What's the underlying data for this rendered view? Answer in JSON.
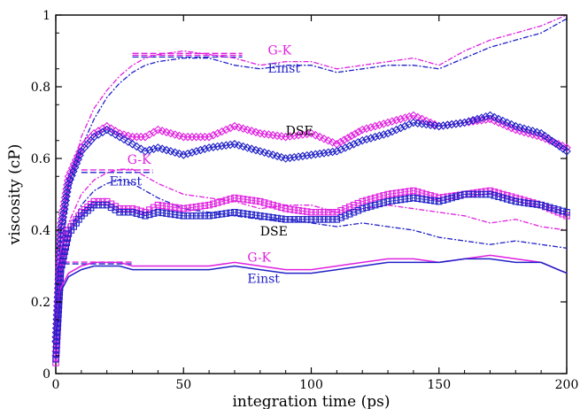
{
  "chart_data": {
    "type": "line",
    "title": "",
    "xlabel": "integration time (ps)",
    "ylabel": "viscosity (cP)",
    "xlim": [
      0,
      200
    ],
    "ylim": [
      0,
      1
    ],
    "xticks": [
      0,
      50,
      100,
      150,
      200
    ],
    "xtick_labels": [
      "0",
      "50",
      "100",
      "150",
      "200"
    ],
    "yticks": [
      0,
      0.2,
      0.4,
      0.6,
      0.8,
      1
    ],
    "ytick_labels": [
      "0",
      "0.2",
      "0.4",
      "0.6",
      "0.8",
      "1"
    ],
    "grid": false,
    "legend": "none",
    "colors": {
      "gk": "#e020e0",
      "einst": "#2020c8",
      "text": "#000000"
    },
    "series": [
      {
        "group": "top",
        "method": "G-K",
        "style": "dashed",
        "color": "#e020e0",
        "x": [
          0,
          2,
          5,
          10,
          15,
          20,
          25,
          30,
          35,
          40,
          50,
          60,
          70,
          80,
          90,
          100,
          110,
          120,
          130,
          140,
          150,
          160,
          170,
          180,
          190,
          200
        ],
        "y": [
          0.1,
          0.32,
          0.52,
          0.66,
          0.74,
          0.79,
          0.83,
          0.86,
          0.88,
          0.89,
          0.9,
          0.89,
          0.88,
          0.86,
          0.87,
          0.87,
          0.85,
          0.86,
          0.87,
          0.88,
          0.86,
          0.9,
          0.93,
          0.95,
          0.97,
          1.0
        ]
      },
      {
        "group": "top",
        "method": "Einst",
        "style": "dashed",
        "color": "#2020c8",
        "x": [
          0,
          2,
          5,
          10,
          15,
          20,
          25,
          30,
          35,
          40,
          50,
          60,
          70,
          80,
          90,
          100,
          110,
          120,
          130,
          140,
          150,
          160,
          170,
          180,
          190,
          200
        ],
        "y": [
          0.09,
          0.3,
          0.5,
          0.63,
          0.71,
          0.77,
          0.81,
          0.84,
          0.86,
          0.87,
          0.88,
          0.88,
          0.86,
          0.85,
          0.86,
          0.86,
          0.84,
          0.85,
          0.86,
          0.86,
          0.85,
          0.88,
          0.91,
          0.93,
          0.95,
          0.99
        ]
      },
      {
        "group": "top",
        "method": "DSE",
        "style": "diamond",
        "color": "#e020e0",
        "x": [
          0,
          2,
          5,
          10,
          15,
          20,
          25,
          30,
          35,
          40,
          50,
          60,
          70,
          80,
          90,
          100,
          110,
          120,
          130,
          140,
          150,
          160,
          170,
          180,
          190,
          200
        ],
        "y": [
          0.05,
          0.42,
          0.55,
          0.63,
          0.67,
          0.69,
          0.67,
          0.66,
          0.66,
          0.68,
          0.66,
          0.66,
          0.69,
          0.67,
          0.66,
          0.67,
          0.64,
          0.68,
          0.7,
          0.72,
          0.69,
          0.7,
          0.71,
          0.68,
          0.66,
          0.63
        ]
      },
      {
        "group": "top",
        "method": "DSE",
        "style": "diamond",
        "color": "#2020c8",
        "x": [
          0,
          2,
          5,
          10,
          15,
          20,
          25,
          30,
          35,
          40,
          50,
          60,
          70,
          80,
          90,
          100,
          110,
          120,
          130,
          140,
          150,
          160,
          170,
          180,
          190,
          200
        ],
        "y": [
          0.09,
          0.4,
          0.53,
          0.62,
          0.66,
          0.68,
          0.66,
          0.64,
          0.62,
          0.63,
          0.61,
          0.63,
          0.64,
          0.62,
          0.6,
          0.61,
          0.62,
          0.65,
          0.67,
          0.7,
          0.69,
          0.7,
          0.72,
          0.69,
          0.67,
          0.62
        ]
      },
      {
        "group": "middle",
        "method": "G-K",
        "style": "dashed",
        "color": "#e020e0",
        "x": [
          0,
          2,
          5,
          10,
          15,
          20,
          25,
          30,
          35,
          40,
          50,
          60,
          70,
          80,
          90,
          100,
          110,
          120,
          130,
          140,
          150,
          160,
          170,
          180,
          190,
          200
        ],
        "y": [
          0.08,
          0.28,
          0.42,
          0.5,
          0.54,
          0.56,
          0.57,
          0.57,
          0.55,
          0.53,
          0.5,
          0.49,
          0.48,
          0.46,
          0.47,
          0.47,
          0.45,
          0.46,
          0.47,
          0.46,
          0.45,
          0.44,
          0.42,
          0.43,
          0.41,
          0.4
        ]
      },
      {
        "group": "middle",
        "method": "Einst",
        "style": "dashed",
        "color": "#2020c8",
        "x": [
          0,
          2,
          5,
          10,
          15,
          20,
          25,
          30,
          35,
          40,
          50,
          60,
          70,
          80,
          90,
          100,
          110,
          120,
          130,
          140,
          150,
          160,
          170,
          180,
          190,
          200
        ],
        "y": [
          0.07,
          0.26,
          0.39,
          0.47,
          0.51,
          0.53,
          0.54,
          0.53,
          0.51,
          0.49,
          0.46,
          0.45,
          0.44,
          0.43,
          0.43,
          0.42,
          0.41,
          0.42,
          0.41,
          0.4,
          0.38,
          0.37,
          0.36,
          0.37,
          0.36,
          0.35
        ]
      },
      {
        "group": "middle",
        "method": "DSE",
        "style": "square",
        "color": "#e020e0",
        "x": [
          0,
          2,
          5,
          10,
          15,
          20,
          25,
          30,
          35,
          40,
          50,
          60,
          70,
          80,
          90,
          100,
          110,
          120,
          130,
          140,
          150,
          160,
          170,
          180,
          190,
          200
        ],
        "y": [
          0.03,
          0.3,
          0.4,
          0.45,
          0.48,
          0.48,
          0.46,
          0.46,
          0.45,
          0.47,
          0.46,
          0.47,
          0.49,
          0.48,
          0.46,
          0.45,
          0.45,
          0.48,
          0.5,
          0.51,
          0.49,
          0.5,
          0.51,
          0.49,
          0.47,
          0.44
        ]
      },
      {
        "group": "middle",
        "method": "DSE",
        "style": "square",
        "color": "#2020c8",
        "x": [
          0,
          2,
          5,
          10,
          15,
          20,
          25,
          30,
          35,
          40,
          50,
          60,
          70,
          80,
          90,
          100,
          110,
          120,
          130,
          140,
          150,
          160,
          170,
          180,
          190,
          200
        ],
        "y": [
          0.04,
          0.29,
          0.39,
          0.44,
          0.47,
          0.47,
          0.45,
          0.45,
          0.44,
          0.45,
          0.44,
          0.44,
          0.45,
          0.44,
          0.43,
          0.43,
          0.43,
          0.46,
          0.48,
          0.49,
          0.48,
          0.5,
          0.5,
          0.48,
          0.47,
          0.45
        ]
      },
      {
        "group": "bottom",
        "method": "G-K",
        "style": "solid",
        "color": "#e020e0",
        "x": [
          0,
          2,
          5,
          10,
          15,
          20,
          25,
          30,
          35,
          40,
          50,
          60,
          70,
          80,
          90,
          100,
          110,
          120,
          130,
          140,
          150,
          160,
          170,
          180,
          190,
          200
        ],
        "y": [
          0.12,
          0.24,
          0.28,
          0.3,
          0.31,
          0.31,
          0.31,
          0.3,
          0.3,
          0.3,
          0.3,
          0.3,
          0.31,
          0.3,
          0.29,
          0.29,
          0.3,
          0.31,
          0.32,
          0.32,
          0.31,
          0.32,
          0.33,
          0.32,
          0.31,
          0.28
        ]
      },
      {
        "group": "bottom",
        "method": "Einst",
        "style": "solid",
        "color": "#2020c8",
        "x": [
          0,
          2,
          5,
          10,
          15,
          20,
          25,
          30,
          35,
          40,
          50,
          60,
          70,
          80,
          90,
          100,
          110,
          120,
          130,
          140,
          150,
          160,
          170,
          180,
          190,
          200
        ],
        "y": [
          0.11,
          0.23,
          0.27,
          0.29,
          0.3,
          0.3,
          0.3,
          0.29,
          0.29,
          0.29,
          0.29,
          0.29,
          0.3,
          0.29,
          0.28,
          0.28,
          0.29,
          0.3,
          0.31,
          0.31,
          0.31,
          0.32,
          0.32,
          0.31,
          0.31,
          0.28
        ]
      }
    ],
    "reference_lines": [
      {
        "color": "#e020e0",
        "x": [
          30,
          73
        ],
        "y": 0.893
      },
      {
        "color": "#e020e0",
        "x": [
          30,
          73
        ],
        "y": 0.888
      },
      {
        "color": "#2020c8",
        "x": [
          30,
          73
        ],
        "y": 0.883
      },
      {
        "color": "#e020e0",
        "x": [
          10,
          38
        ],
        "y": 0.568
      },
      {
        "color": "#2020c8",
        "x": [
          10,
          38
        ],
        "y": 0.561
      },
      {
        "color": "#e020e0",
        "x": [
          3,
          30
        ],
        "y": 0.311
      },
      {
        "color": "#2020c8",
        "x": [
          3,
          30
        ],
        "y": 0.306
      }
    ],
    "annotations": [
      {
        "text": "G-K",
        "color": "#e020e0",
        "x": 83,
        "y": 0.89
      },
      {
        "text": "Einst",
        "color": "#2020c8",
        "x": 83,
        "y": 0.84
      },
      {
        "text": "DSE",
        "color": "#000000",
        "x": 90,
        "y": 0.665
      },
      {
        "text": "G-K",
        "color": "#e020e0",
        "x": 28,
        "y": 0.585
      },
      {
        "text": "Einst",
        "color": "#2020c8",
        "x": 21,
        "y": 0.525
      },
      {
        "text": "DSE",
        "color": "#000000",
        "x": 80,
        "y": 0.385
      },
      {
        "text": "G-K",
        "color": "#e020e0",
        "x": 75,
        "y": 0.312
      },
      {
        "text": "Einst",
        "color": "#2020c8",
        "x": 75,
        "y": 0.253
      }
    ]
  }
}
